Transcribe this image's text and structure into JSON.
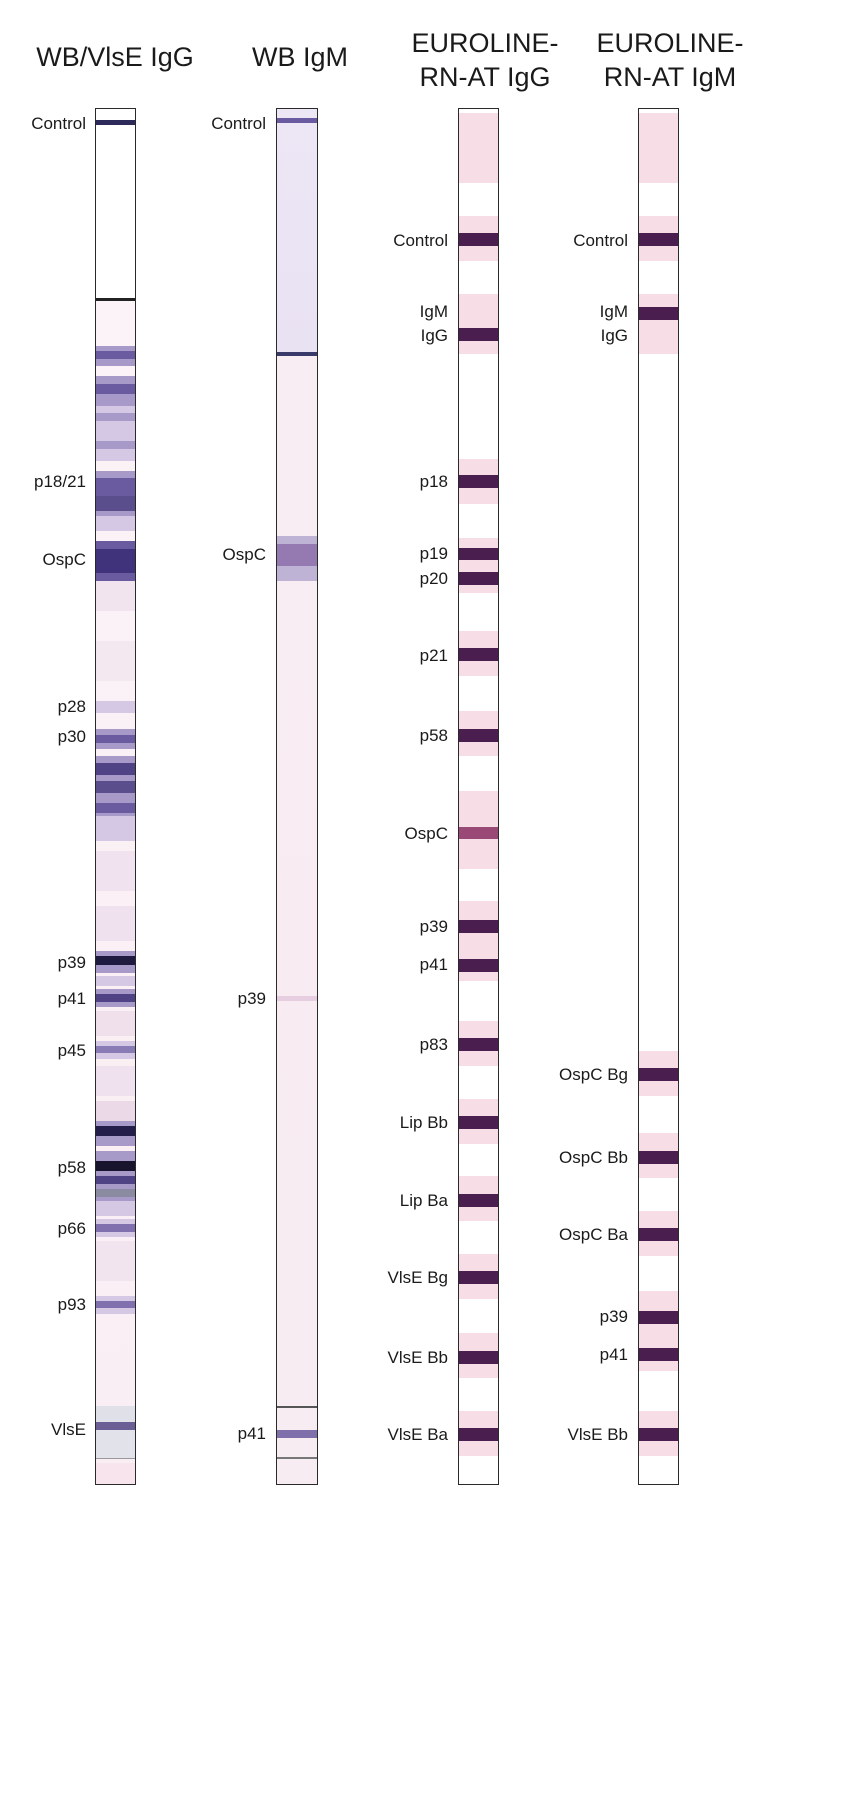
{
  "strips": [
    {
      "id": "wb-vlse-igg",
      "header": "WB/VlsE IgG",
      "labels": [
        "Control",
        "p18/21",
        "OspC",
        "p28",
        "p30",
        "p39",
        "p41",
        "p45",
        "p58",
        "p66",
        "p93",
        "VlsE"
      ]
    },
    {
      "id": "wb-igm",
      "header": "WB IgM",
      "labels": [
        "Control",
        "OspC",
        "p39",
        "p41"
      ]
    },
    {
      "id": "euroline-igg",
      "header_line1": "EUROLINE-",
      "header_line2": "RN-AT IgG",
      "labels": [
        "Control",
        "IgM",
        "IgG",
        "p18",
        "p19",
        "p20",
        "p21",
        "p58",
        "OspC",
        "p39",
        "p41",
        "p83",
        "Lip Bb",
        "Lip Ba",
        "VlsE Bg",
        "VlsE Bb",
        "VlsE Ba"
      ]
    },
    {
      "id": "euroline-igm",
      "header_line1": "EUROLINE-",
      "header_line2": "RN-AT IgM",
      "labels": [
        "Control",
        "IgM",
        "IgG",
        "OspC Bg",
        "OspC Bb",
        "OspC Ba",
        "p39",
        "p41",
        "VlsE Bb"
      ]
    }
  ],
  "colors": {
    "band_dark": "#4a1f4f",
    "band_blue": "#3c2f78",
    "background_pink": "#f6dde6",
    "background_lavender": "#ebe4f4"
  }
}
